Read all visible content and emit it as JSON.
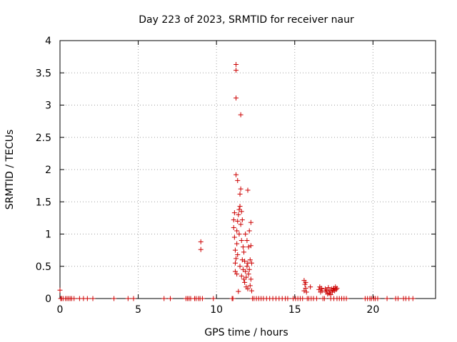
{
  "chart_data": {
    "type": "scatter",
    "title": "Day 223 of 2023, SRMTID for receiver naur",
    "xlabel": "GPS time / hours",
    "ylabel": "SRMTID / TECUs",
    "xlim": [
      0,
      24
    ],
    "ylim": [
      0,
      4
    ],
    "x_ticks": [
      0,
      5,
      10,
      15,
      20
    ],
    "y_ticks": [
      0,
      0.5,
      1,
      1.5,
      2,
      2.5,
      3,
      3.5,
      4
    ],
    "grid": true,
    "marker": "plus",
    "marker_color": "#cc0000",
    "series": [
      {
        "name": "naur",
        "points": [
          [
            0.0,
            0.13
          ],
          [
            0.05,
            0.0
          ],
          [
            0.1,
            0.0
          ],
          [
            0.2,
            0.0
          ],
          [
            0.35,
            0.0
          ],
          [
            0.45,
            0.0
          ],
          [
            0.55,
            0.0
          ],
          [
            0.65,
            0.0
          ],
          [
            0.75,
            0.0
          ],
          [
            0.9,
            0.0
          ],
          [
            1.25,
            0.0
          ],
          [
            1.5,
            0.0
          ],
          [
            1.75,
            0.0
          ],
          [
            2.1,
            0.0
          ],
          [
            3.45,
            0.0
          ],
          [
            4.35,
            0.0
          ],
          [
            4.7,
            0.0
          ],
          [
            6.65,
            0.0
          ],
          [
            7.05,
            0.0
          ],
          [
            8.05,
            0.0
          ],
          [
            8.15,
            0.0
          ],
          [
            8.25,
            0.0
          ],
          [
            8.35,
            0.0
          ],
          [
            8.6,
            0.0
          ],
          [
            8.7,
            0.0
          ],
          [
            8.85,
            0.0
          ],
          [
            8.95,
            0.0
          ],
          [
            9.1,
            0.0
          ],
          [
            9.8,
            0.0
          ],
          [
            9.0,
            0.88
          ],
          [
            9.0,
            0.76
          ],
          [
            11.0,
            0.0
          ],
          [
            11.05,
            0.0
          ],
          [
            11.1,
            1.1
          ],
          [
            11.1,
            1.22
          ],
          [
            11.15,
            1.33
          ],
          [
            11.15,
            0.95
          ],
          [
            11.2,
            0.75
          ],
          [
            11.2,
            0.55
          ],
          [
            11.2,
            0.42
          ],
          [
            11.25,
            3.63
          ],
          [
            11.25,
            3.54
          ],
          [
            11.25,
            3.11
          ],
          [
            11.25,
            1.92
          ],
          [
            11.25,
            0.62
          ],
          [
            11.3,
            1.05
          ],
          [
            11.3,
            0.85
          ],
          [
            11.3,
            0.38
          ],
          [
            11.35,
            1.83
          ],
          [
            11.35,
            1.2
          ],
          [
            11.35,
            0.68
          ],
          [
            11.4,
            0.11
          ],
          [
            11.4,
            1.3
          ],
          [
            11.45,
            1.38
          ],
          [
            11.45,
            1.0
          ],
          [
            11.5,
            1.62
          ],
          [
            11.5,
            1.43
          ],
          [
            11.5,
            0.5
          ],
          [
            11.55,
            2.85
          ],
          [
            11.55,
            1.7
          ],
          [
            11.55,
            1.15
          ],
          [
            11.6,
            1.35
          ],
          [
            11.6,
            0.9
          ],
          [
            11.6,
            0.35
          ],
          [
            11.65,
            1.22
          ],
          [
            11.65,
            0.6
          ],
          [
            11.7,
            0.45
          ],
          [
            11.7,
            0.8
          ],
          [
            11.75,
            0.3
          ],
          [
            11.75,
            0.72
          ],
          [
            11.8,
            0.58
          ],
          [
            11.8,
            0.25
          ],
          [
            11.85,
            1.0
          ],
          [
            11.85,
            0.42
          ],
          [
            11.9,
            0.33
          ],
          [
            11.9,
            0.18
          ],
          [
            11.95,
            0.9
          ],
          [
            11.95,
            0.5
          ],
          [
            12.0,
            1.68
          ],
          [
            12.0,
            0.55
          ],
          [
            12.0,
            0.15
          ],
          [
            12.05,
            0.38
          ],
          [
            12.05,
            0.8
          ],
          [
            12.1,
            1.05
          ],
          [
            12.1,
            0.45
          ],
          [
            12.15,
            0.2
          ],
          [
            12.15,
            0.6
          ],
          [
            12.2,
            1.18
          ],
          [
            12.2,
            0.82
          ],
          [
            12.2,
            0.3
          ],
          [
            12.25,
            0.55
          ],
          [
            12.25,
            0.12
          ],
          [
            12.3,
            0.0
          ],
          [
            12.4,
            0.0
          ],
          [
            12.55,
            0.0
          ],
          [
            12.7,
            0.0
          ],
          [
            12.85,
            0.0
          ],
          [
            13.0,
            0.0
          ],
          [
            13.2,
            0.0
          ],
          [
            13.4,
            0.0
          ],
          [
            13.6,
            0.0
          ],
          [
            13.8,
            0.0
          ],
          [
            14.0,
            0.0
          ],
          [
            14.2,
            0.0
          ],
          [
            14.4,
            0.0
          ],
          [
            14.55,
            0.0
          ],
          [
            14.9,
            0.0
          ],
          [
            15.05,
            0.0
          ],
          [
            15.2,
            0.0
          ],
          [
            15.35,
            0.0
          ],
          [
            15.5,
            0.0
          ],
          [
            15.6,
            0.28
          ],
          [
            15.6,
            0.12
          ],
          [
            15.65,
            0.22
          ],
          [
            15.7,
            0.16
          ],
          [
            15.7,
            0.25
          ],
          [
            15.75,
            0.1
          ],
          [
            15.8,
            0.0
          ],
          [
            15.9,
            0.0
          ],
          [
            16.0,
            0.18
          ],
          [
            16.05,
            0.0
          ],
          [
            16.2,
            0.0
          ],
          [
            16.4,
            0.0
          ],
          [
            16.55,
            0.14
          ],
          [
            16.6,
            0.18
          ],
          [
            16.65,
            0.1
          ],
          [
            16.7,
            0.16
          ],
          [
            16.75,
            0.12
          ],
          [
            16.8,
            0.0
          ],
          [
            16.9,
            0.0
          ],
          [
            16.95,
            0.15
          ],
          [
            17.0,
            0.1
          ],
          [
            17.05,
            0.13
          ],
          [
            17.1,
            0.07
          ],
          [
            17.15,
            0.17
          ],
          [
            17.2,
            0.08
          ],
          [
            17.25,
            0.12
          ],
          [
            17.3,
            0.06
          ],
          [
            17.35,
            0.15
          ],
          [
            17.4,
            0.1
          ],
          [
            17.45,
            0.13
          ],
          [
            17.5,
            0.16
          ],
          [
            17.55,
            0.12
          ],
          [
            17.6,
            0.18
          ],
          [
            17.65,
            0.14
          ],
          [
            17.7,
            0.16
          ],
          [
            17.3,
            0.0
          ],
          [
            17.5,
            0.0
          ],
          [
            17.7,
            0.0
          ],
          [
            17.85,
            0.0
          ],
          [
            18.0,
            0.0
          ],
          [
            18.15,
            0.0
          ],
          [
            18.3,
            0.0
          ],
          [
            19.5,
            0.0
          ],
          [
            19.65,
            0.0
          ],
          [
            19.8,
            0.0
          ],
          [
            19.9,
            0.0
          ],
          [
            20.05,
            0.0
          ],
          [
            20.15,
            0.0
          ],
          [
            20.3,
            0.0
          ],
          [
            20.9,
            0.0
          ],
          [
            21.45,
            0.0
          ],
          [
            21.6,
            0.0
          ],
          [
            21.95,
            0.0
          ],
          [
            22.1,
            0.0
          ],
          [
            22.3,
            0.0
          ],
          [
            22.55,
            0.0
          ]
        ]
      }
    ]
  }
}
